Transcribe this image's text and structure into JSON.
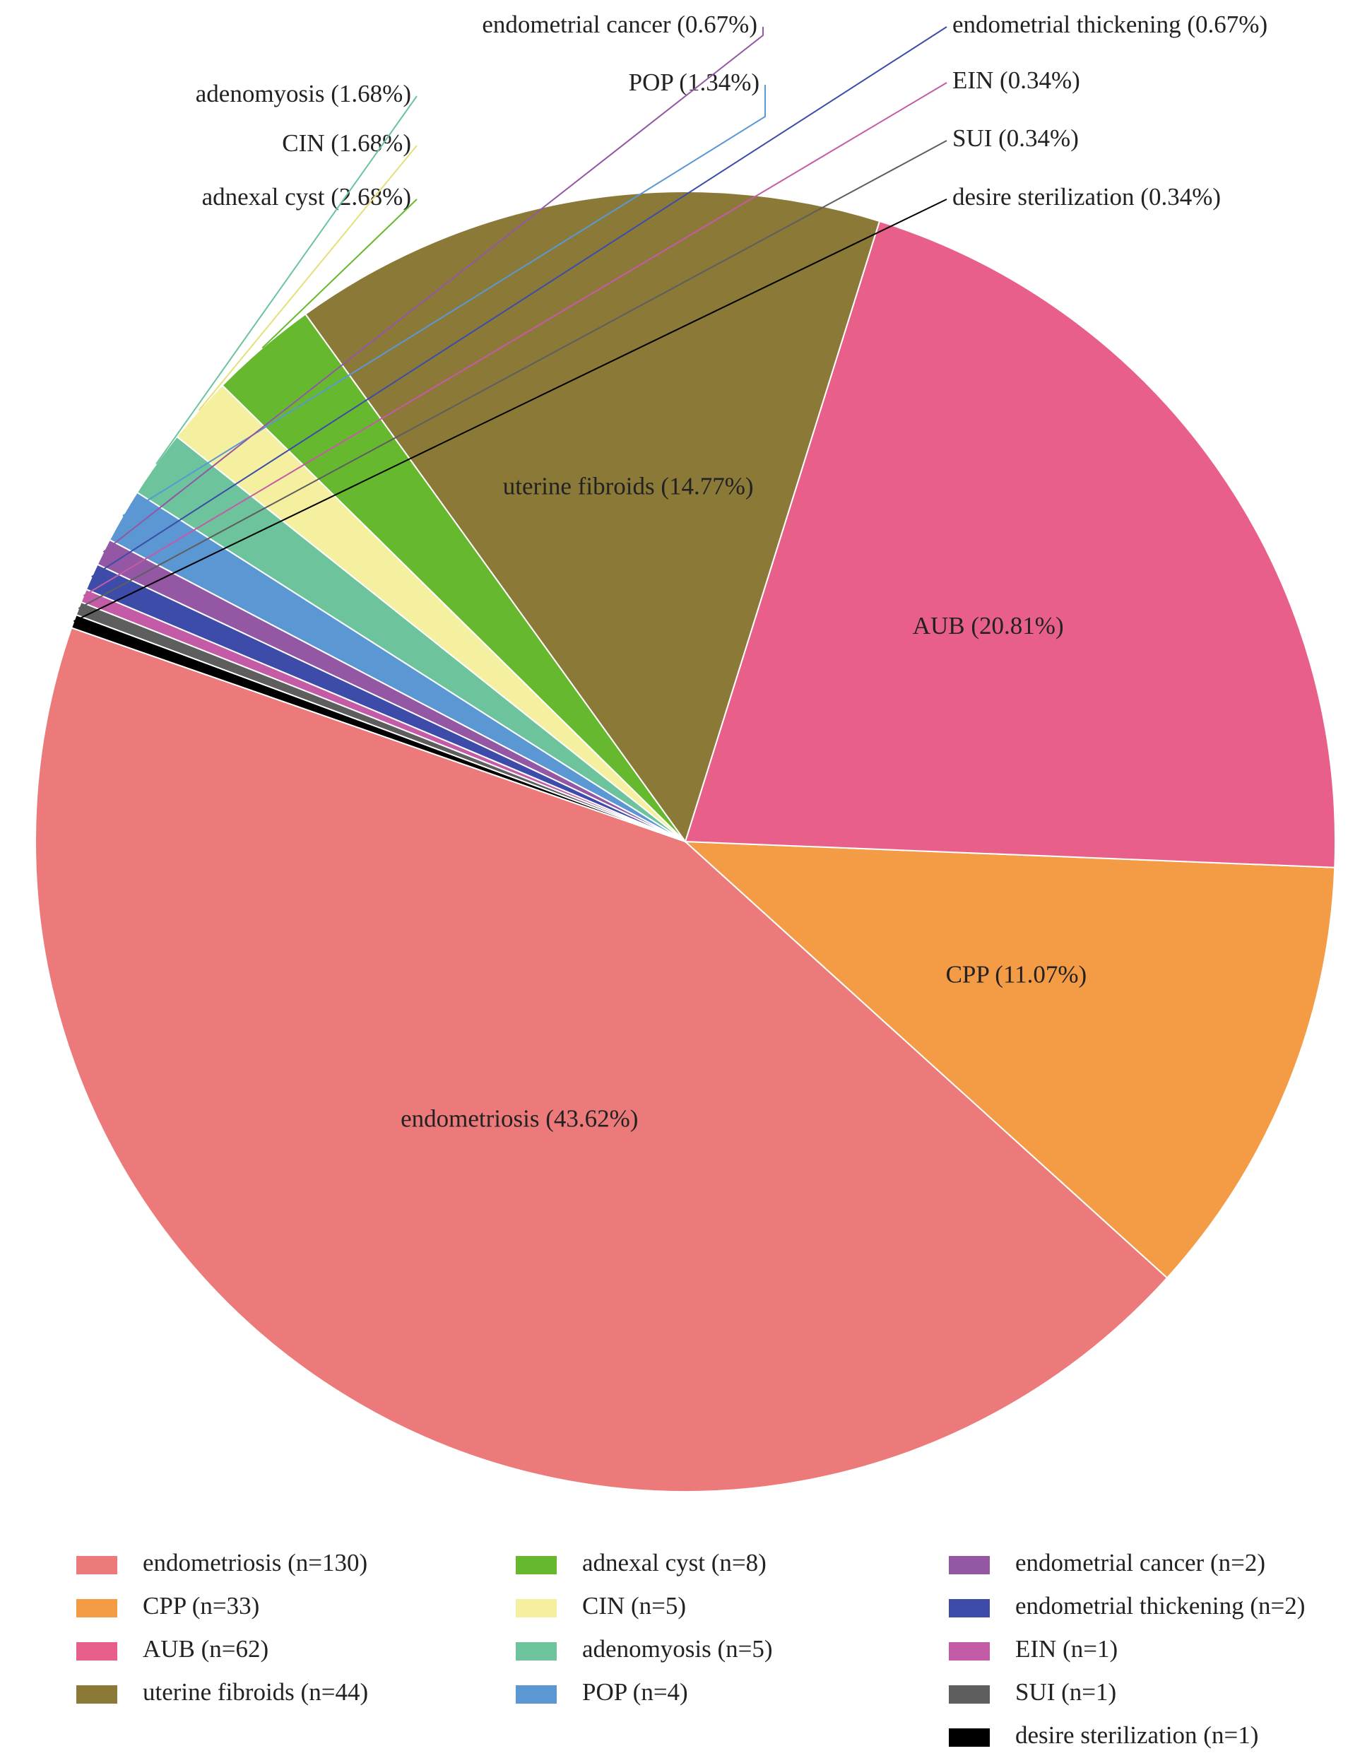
{
  "chart_data": {
    "type": "pie",
    "title": "",
    "slices": [
      {
        "label": "endometriosis",
        "percent_label": "endometriosis (43.62%)",
        "legend": "endometriosis (n=130)",
        "n": 130,
        "color": "#ED7A7A"
      },
      {
        "label": "CPP",
        "percent_label": "CPP (11.07%)",
        "legend": "CPP (n=33)",
        "n": 33,
        "color": "#F39C45"
      },
      {
        "label": "AUB",
        "percent_label": "AUB (20.81%)",
        "legend": "AUB (n=62)",
        "n": 62,
        "color": "#E8608A"
      },
      {
        "label": "uterine fibroids",
        "percent_label": "uterine fibroids (14.77%)",
        "legend": "uterine fibroids (n=44)",
        "n": 44,
        "color": "#8B7938"
      },
      {
        "label": "adnexal cyst",
        "percent_label": "adnexal cyst (2.68%)",
        "legend": "adnexal cyst (n=8)",
        "n": 8,
        "color": "#66B82F"
      },
      {
        "label": "CIN",
        "percent_label": "CIN (1.68%)",
        "legend": "CIN (n=5)",
        "n": 5,
        "color": "#F5F0A0"
      },
      {
        "label": "adenomyosis",
        "percent_label": "adenomyosis (1.68%)",
        "legend": "adenomyosis (n=5)",
        "n": 5,
        "color": "#6CC39C"
      },
      {
        "label": "POP",
        "percent_label": "POP (1.34%)",
        "legend": "POP (n=4)",
        "n": 4,
        "color": "#5B97D3"
      },
      {
        "label": "endometrial cancer",
        "percent_label": "endometrial cancer (0.67%)",
        "legend": "endometrial cancer (n=2)",
        "n": 2,
        "color": "#9457A4"
      },
      {
        "label": "endometrial thickening",
        "percent_label": "endometrial thickening (0.67%)",
        "legend": "endometrial thickening (n=2)",
        "n": 2,
        "color": "#3D4CA9"
      },
      {
        "label": "EIN",
        "percent_label": "EIN (0.34%)",
        "legend": "EIN (n=1)",
        "n": 1,
        "color": "#C35BA6"
      },
      {
        "label": "SUI",
        "percent_label": "SUI (0.34%)",
        "legend": "SUI (n=1)",
        "n": 1,
        "color": "#5E5E5E"
      },
      {
        "label": "desire sterilization",
        "percent_label": "desire sterilization (0.34%)",
        "legend": "desire sterilization (n=1)",
        "n": 1,
        "color": "#000000"
      }
    ],
    "legend_placement": "bottom"
  }
}
